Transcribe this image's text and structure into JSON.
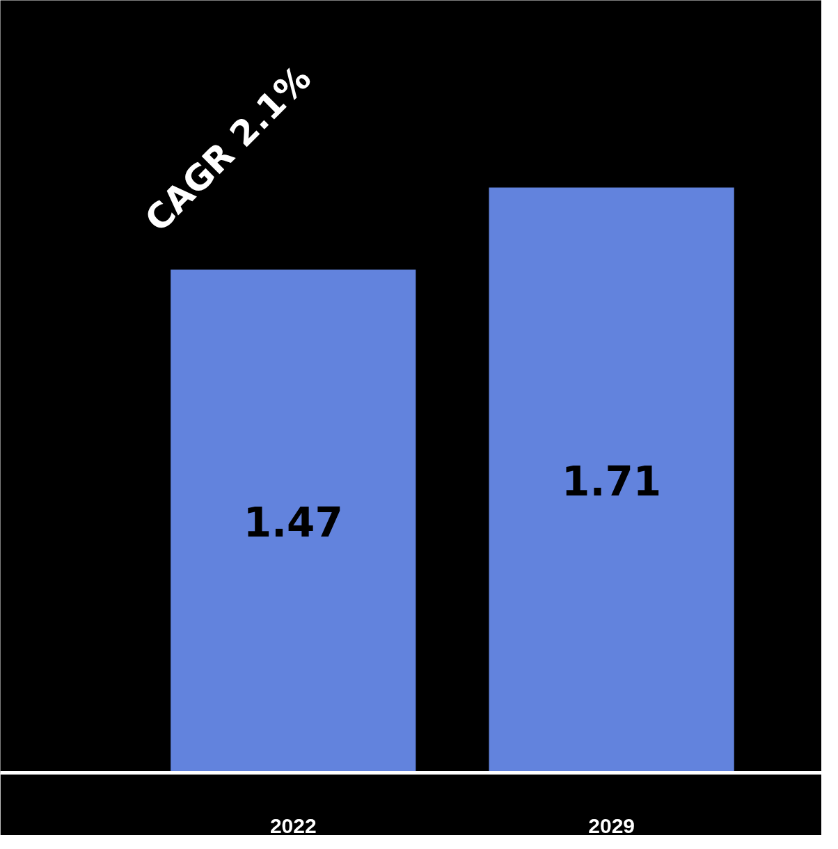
{
  "chart_data": {
    "type": "bar",
    "categories": [
      "2022",
      "2029"
    ],
    "values": [
      1.47,
      1.71
    ],
    "color": "#6283dd",
    "data_labels": true,
    "grid": false,
    "annotations": [
      "CAGR 2.1%"
    ]
  }
}
